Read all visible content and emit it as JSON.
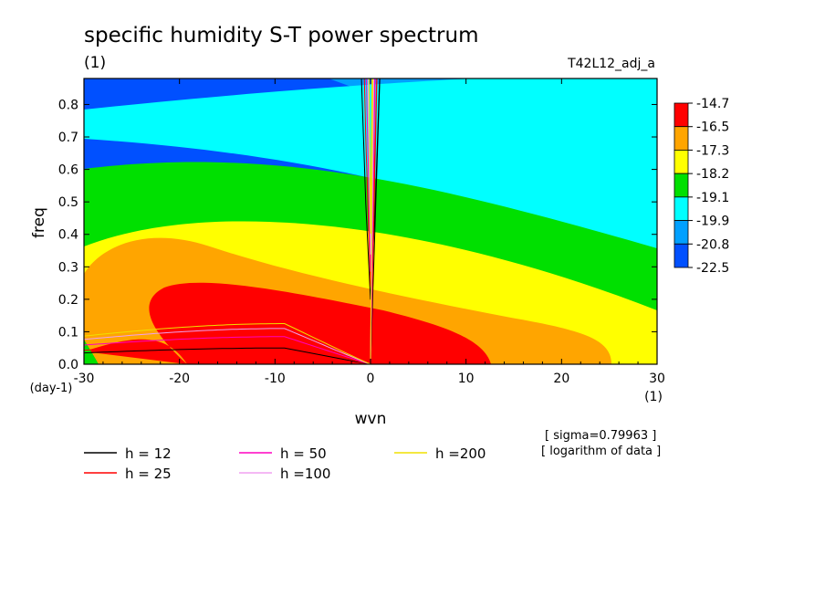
{
  "chart_data": {
    "type": "heatmap",
    "title": "specific humidity S-T power spectrum",
    "subtitle_left": "(1)",
    "subtitle_right": "T42L12_adj_a",
    "xlabel": "wvn",
    "ylabel": "freq",
    "x_unit_label": "(1)",
    "y_unit_label": "(day-1)",
    "xlim": [
      -30,
      30
    ],
    "ylim": [
      0,
      0.88
    ],
    "x_ticks": [
      "-30",
      "-20",
      "-10",
      "0",
      "10",
      "20",
      "30"
    ],
    "y_ticks": [
      "0.0",
      "0.1",
      "0.2",
      "0.3",
      "0.4",
      "0.5",
      "0.6",
      "0.7",
      "0.8"
    ],
    "colorbar": {
      "levels": [
        "-14.7",
        "-16.5",
        "-17.3",
        "-18.2",
        "-19.1",
        "-19.9",
        "-20.8",
        "-22.5"
      ],
      "colors": [
        "#ff0000",
        "#ffa500",
        "#ffff00",
        "#00e000",
        "#00ffff",
        "#00a0ff",
        "#0050ff"
      ]
    },
    "dispersion_curves": [
      {
        "label": "h = 12",
        "h": 12,
        "color": "#000000"
      },
      {
        "label": "h = 25",
        "h": 25,
        "color": "#ff0000"
      },
      {
        "label": "h = 50",
        "h": 50,
        "color": "#ff00c0"
      },
      {
        "label": "h =100",
        "h": 100,
        "color": "#f0a0f0"
      },
      {
        "label": "h =200",
        "h": 200,
        "color": "#f0e000"
      }
    ],
    "annotations": [
      "[ sigma=0.79963 ]",
      "[ logarithm of data ]"
    ]
  }
}
